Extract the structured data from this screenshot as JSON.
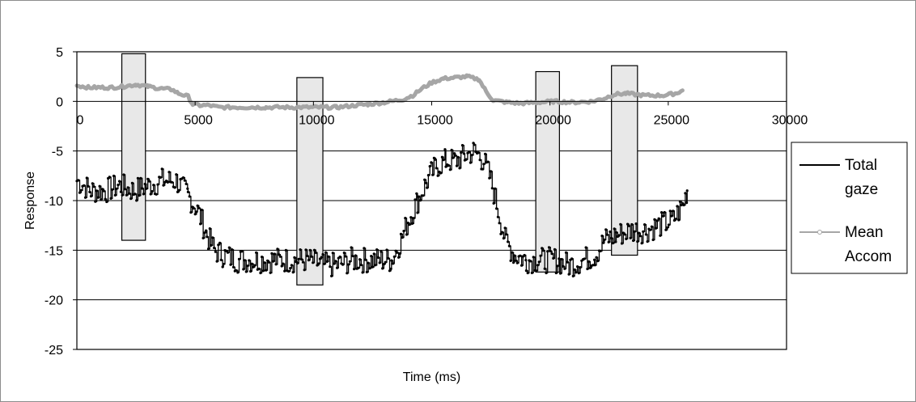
{
  "chart_data": {
    "type": "line",
    "title": "",
    "xlabel": "Time  (ms)",
    "ylabel": "Response",
    "xlim": [
      0,
      30000
    ],
    "ylim": [
      -25,
      5
    ],
    "x_ticks": [
      0,
      5000,
      10000,
      15000,
      20000,
      25000,
      30000
    ],
    "y_ticks": [
      5,
      0,
      -5,
      -10,
      -15,
      -20,
      -25
    ],
    "x_tick_labels": [
      "0",
      "5000",
      "10000",
      "15000",
      "20000",
      "25000",
      "30000"
    ],
    "y_tick_labels": [
      "5",
      "0",
      "-5",
      "-10",
      "-15",
      "-20",
      "-25"
    ],
    "grid": "horizontal",
    "legend_position": "right",
    "legend": [
      {
        "label_line1": "Total",
        "label_line2": "gaze"
      },
      {
        "label_line1": "Mean",
        "label_line2": "Accom"
      }
    ],
    "series": [
      {
        "name": "Total gaze",
        "color": "#000000",
        "points": [
          [
            0,
            -8
          ],
          [
            600,
            -9
          ],
          [
            1200,
            -9
          ],
          [
            1800,
            -8.5
          ],
          [
            2400,
            -9
          ],
          [
            3000,
            -8.5
          ],
          [
            3600,
            -8
          ],
          [
            4200,
            -8
          ],
          [
            4700,
            -9.5
          ],
          [
            5100,
            -11
          ],
          [
            5500,
            -13.5
          ],
          [
            5800,
            -15
          ],
          [
            6200,
            -15.5
          ],
          [
            6800,
            -16
          ],
          [
            7400,
            -16
          ],
          [
            8000,
            -16
          ],
          [
            8600,
            -16
          ],
          [
            9200,
            -16
          ],
          [
            9800,
            -16
          ],
          [
            10400,
            -16.5
          ],
          [
            11000,
            -16.5
          ],
          [
            11600,
            -16
          ],
          [
            12200,
            -16
          ],
          [
            12800,
            -16
          ],
          [
            13300,
            -16
          ],
          [
            13700,
            -14
          ],
          [
            14000,
            -12
          ],
          [
            14400,
            -10
          ],
          [
            14800,
            -8
          ],
          [
            15200,
            -6.5
          ],
          [
            15600,
            -6
          ],
          [
            16000,
            -6
          ],
          [
            16400,
            -5.5
          ],
          [
            16800,
            -5
          ],
          [
            17200,
            -6
          ],
          [
            17500,
            -8
          ],
          [
            17800,
            -11
          ],
          [
            18100,
            -14
          ],
          [
            18500,
            -15.5
          ],
          [
            19000,
            -16
          ],
          [
            19600,
            -16
          ],
          [
            20200,
            -16
          ],
          [
            20800,
            -16.5
          ],
          [
            21400,
            -16
          ],
          [
            21900,
            -15.5
          ],
          [
            22300,
            -14
          ],
          [
            22800,
            -13.5
          ],
          [
            23400,
            -13
          ],
          [
            24000,
            -13
          ],
          [
            24600,
            -12.5
          ],
          [
            25200,
            -12
          ],
          [
            25600,
            -10.5
          ],
          [
            25800,
            -9
          ]
        ],
        "noise": 1.3
      },
      {
        "name": "Mean Accom",
        "color": "#a6a6a6",
        "points": [
          [
            0,
            1.6
          ],
          [
            500,
            1.4
          ],
          [
            1000,
            1.4
          ],
          [
            1500,
            1.4
          ],
          [
            2000,
            1.5
          ],
          [
            2500,
            1.7
          ],
          [
            3000,
            1.5
          ],
          [
            3500,
            1.3
          ],
          [
            4000,
            1.2
          ],
          [
            4300,
            0.8
          ],
          [
            4700,
            0.5
          ],
          [
            4900,
            -0.3
          ],
          [
            5200,
            -0.4
          ],
          [
            5600,
            -0.4
          ],
          [
            6000,
            -0.6
          ],
          [
            7000,
            -0.6
          ],
          [
            8000,
            -0.6
          ],
          [
            9000,
            -0.6
          ],
          [
            10000,
            -0.6
          ],
          [
            11000,
            -0.6
          ],
          [
            11800,
            -0.4
          ],
          [
            12300,
            -0.3
          ],
          [
            13000,
            -0.1
          ],
          [
            13800,
            0.2
          ],
          [
            14200,
            0.6
          ],
          [
            14600,
            1.3
          ],
          [
            15000,
            1.9
          ],
          [
            15500,
            2.3
          ],
          [
            16000,
            2.4
          ],
          [
            16500,
            2.5
          ],
          [
            17000,
            2.2
          ],
          [
            17300,
            1.0
          ],
          [
            17600,
            0.1
          ],
          [
            18200,
            -0.1
          ],
          [
            18800,
            -0.2
          ],
          [
            19500,
            -0.1
          ],
          [
            20200,
            0.0
          ],
          [
            21000,
            -0.1
          ],
          [
            21800,
            0.0
          ],
          [
            22300,
            0.3
          ],
          [
            22700,
            0.7
          ],
          [
            23200,
            0.8
          ],
          [
            24000,
            0.6
          ],
          [
            24800,
            0.6
          ],
          [
            25300,
            0.8
          ],
          [
            25600,
            1.1
          ]
        ],
        "noise": 0.15
      }
    ],
    "highlight_boxes": [
      {
        "x_start": 1900,
        "x_end": 2900,
        "y_top": 4.8,
        "y_bottom": -14
      },
      {
        "x_start": 9300,
        "x_end": 10400,
        "y_top": 2.4,
        "y_bottom": -18.5
      },
      {
        "x_start": 19400,
        "x_end": 20400,
        "y_top": 3.0,
        "y_bottom": -17.2
      },
      {
        "x_start": 22600,
        "x_end": 23700,
        "y_top": 3.6,
        "y_bottom": -15.5
      }
    ]
  }
}
